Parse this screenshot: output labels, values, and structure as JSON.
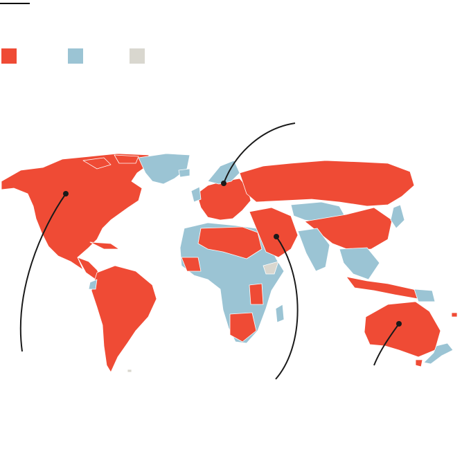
{
  "legend": {
    "items": [
      {
        "key": "category-1",
        "color": "#ef4b35"
      },
      {
        "key": "category-2",
        "color": "#9bc4d4"
      },
      {
        "key": "category-3",
        "color": "#d9d7cf"
      }
    ]
  },
  "colors": {
    "red": "#ef4b35",
    "blue": "#9bc4d4",
    "grey": "#d9d7cf",
    "border": "#ffffff",
    "annotation_line": "#1a1a1a"
  },
  "annotations": [
    {
      "key": "north-america"
    },
    {
      "key": "northern-europe"
    },
    {
      "key": "middle-east"
    },
    {
      "key": "australia"
    }
  ]
}
